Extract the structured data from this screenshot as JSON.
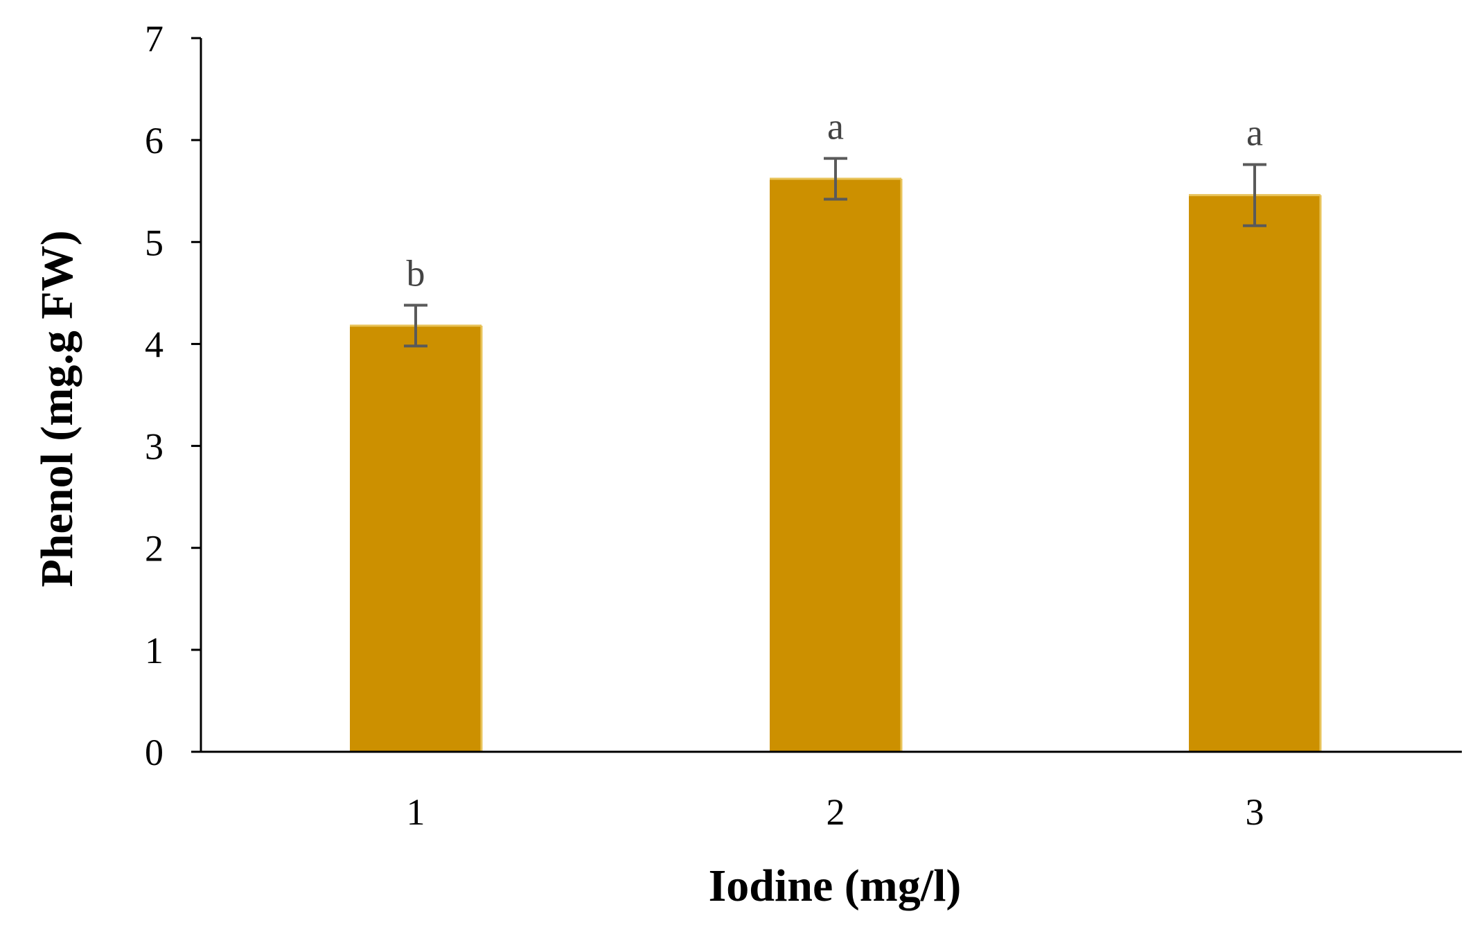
{
  "chart_data": {
    "type": "bar",
    "categories": [
      "1",
      "2",
      "3"
    ],
    "values": [
      4.18,
      5.62,
      5.46
    ],
    "error": [
      0.2,
      0.2,
      0.3
    ],
    "significance": [
      "b",
      "a",
      "a"
    ],
    "title": "",
    "xlabel": "Iodine (mg/l)",
    "ylabel": "Phenol (mg.g FW)",
    "ylim": [
      0,
      7
    ],
    "yticks": [
      "0",
      "1",
      "2",
      "3",
      "4",
      "5",
      "6",
      "7"
    ],
    "grid": false,
    "legend": "none",
    "colors": {
      "bar": "#CC9000",
      "bar_highlight": "#E8C35A",
      "error_bar": "#5A5A5A",
      "axis": "#000000"
    }
  }
}
